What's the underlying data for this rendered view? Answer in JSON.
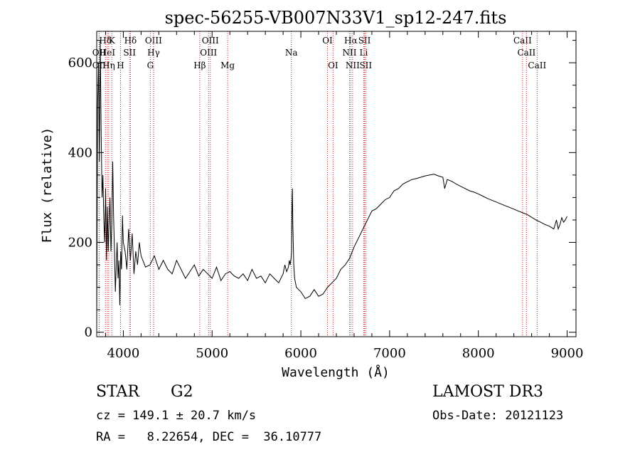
{
  "chart_data": {
    "type": "line",
    "title": "spec-56255-VB007N33V1_sp12-247.fits",
    "xlabel": "Wavelength (Å)",
    "ylabel": "Flux (relative)",
    "xlim": [
      3700,
      9100
    ],
    "ylim": [
      -10,
      670
    ],
    "xticks": [
      4000,
      5000,
      6000,
      7000,
      8000,
      9000
    ],
    "yticks": [
      0,
      200,
      400,
      600
    ],
    "grid": false,
    "series": [
      {
        "name": "flux",
        "x": [
          3700,
          3710,
          3720,
          3730,
          3740,
          3750,
          3760,
          3770,
          3780,
          3790,
          3800,
          3810,
          3820,
          3830,
          3840,
          3850,
          3860,
          3870,
          3880,
          3890,
          3900,
          3910,
          3920,
          3930,
          3940,
          3950,
          3960,
          3970,
          3980,
          3990,
          4000,
          4020,
          4040,
          4060,
          4080,
          4100,
          4120,
          4140,
          4160,
          4180,
          4200,
          4250,
          4300,
          4350,
          4400,
          4450,
          4500,
          4550,
          4600,
          4650,
          4700,
          4750,
          4800,
          4850,
          4900,
          4950,
          5000,
          5050,
          5100,
          5150,
          5200,
          5250,
          5300,
          5350,
          5400,
          5450,
          5500,
          5550,
          5600,
          5650,
          5700,
          5750,
          5800,
          5820,
          5840,
          5860,
          5870,
          5880,
          5890,
          5895,
          5900,
          5905,
          5910,
          5920,
          5930,
          5950,
          6000,
          6050,
          6100,
          6150,
          6200,
          6250,
          6300,
          6350,
          6400,
          6450,
          6500,
          6550,
          6600,
          6650,
          6700,
          6750,
          6800,
          6850,
          6900,
          6950,
          7000,
          7050,
          7100,
          7150,
          7200,
          7250,
          7300,
          7350,
          7400,
          7450,
          7500,
          7550,
          7600,
          7620,
          7650,
          7700,
          7750,
          7800,
          7850,
          7900,
          7950,
          8000,
          8050,
          8100,
          8150,
          8200,
          8250,
          8300,
          8350,
          8400,
          8450,
          8500,
          8550,
          8600,
          8650,
          8700,
          8750,
          8800,
          8850,
          8880,
          8900,
          8920,
          8940,
          8960,
          8980,
          9000
        ],
        "values": [
          20,
          500,
          600,
          380,
          650,
          450,
          300,
          350,
          250,
          200,
          320,
          160,
          280,
          180,
          250,
          300,
          180,
          240,
          380,
          260,
          180,
          90,
          150,
          200,
          120,
          160,
          60,
          180,
          140,
          260,
          200,
          180,
          140,
          230,
          160,
          220,
          130,
          180,
          150,
          200,
          170,
          145,
          150,
          170,
          140,
          160,
          140,
          130,
          160,
          140,
          120,
          135,
          150,
          125,
          140,
          130,
          120,
          145,
          115,
          130,
          135,
          125,
          120,
          130,
          115,
          140,
          120,
          125,
          110,
          130,
          120,
          110,
          130,
          150,
          135,
          145,
          160,
          150,
          165,
          180,
          280,
          320,
          240,
          150,
          120,
          100,
          90,
          75,
          80,
          95,
          80,
          85,
          100,
          110,
          120,
          140,
          150,
          165,
          190,
          210,
          230,
          250,
          270,
          275,
          285,
          295,
          300,
          315,
          320,
          330,
          335,
          340,
          342,
          345,
          348,
          350,
          352,
          348,
          345,
          320,
          340,
          336,
          330,
          325,
          320,
          315,
          312,
          308,
          303,
          298,
          294,
          290,
          286,
          282,
          278,
          274,
          270,
          266,
          262,
          256,
          250,
          245,
          240,
          236,
          230,
          250,
          230,
          240,
          255,
          245,
          250,
          258
        ]
      }
    ],
    "emission_lines": [
      {
        "label": "Hδ",
        "wave": 3798,
        "row": 0
      },
      {
        "label": "K",
        "wave": 3870,
        "row": 0
      },
      {
        "label": "Hδ",
        "wave": 4080,
        "row": 0
      },
      {
        "label": "OIII",
        "wave": 4340,
        "row": 0
      },
      {
        "label": "OIII",
        "wave": 4980,
        "row": 0
      },
      {
        "label": "OI",
        "wave": 6300,
        "row": 0
      },
      {
        "label": "Hα",
        "wave": 6563,
        "row": 0
      },
      {
        "label": "SII",
        "wave": 6717,
        "row": 0
      },
      {
        "label": "CaII",
        "wave": 8498,
        "row": 0
      },
      {
        "label": "OII",
        "wave": 3727,
        "row": 1
      },
      {
        "label": "HeI",
        "wave": 3820,
        "row": 1
      },
      {
        "label": "SII",
        "wave": 4070,
        "row": 1
      },
      {
        "label": "Hγ",
        "wave": 4341,
        "row": 1
      },
      {
        "label": "OIII",
        "wave": 4960,
        "row": 1
      },
      {
        "label": "Na",
        "wave": 5893,
        "row": 1
      },
      {
        "label": "NII",
        "wave": 6548,
        "row": 1
      },
      {
        "label": "Li",
        "wave": 6708,
        "row": 1
      },
      {
        "label": "CaII",
        "wave": 8542,
        "row": 1
      },
      {
        "label": "OII",
        "wave": 3727,
        "row": 2
      },
      {
        "label": "Hη",
        "wave": 3835,
        "row": 2
      },
      {
        "label": "H",
        "wave": 3968,
        "row": 2
      },
      {
        "label": "G",
        "wave": 4304,
        "row": 2
      },
      {
        "label": "Hβ",
        "wave": 4861,
        "row": 2
      },
      {
        "label": "Mg",
        "wave": 5175,
        "row": 2
      },
      {
        "label": "OI",
        "wave": 6363,
        "row": 2
      },
      {
        "label": "NII",
        "wave": 6583,
        "row": 2
      },
      {
        "label": "SII",
        "wave": 6731,
        "row": 2
      },
      {
        "label": "CaII",
        "wave": 8662,
        "row": 2
      }
    ],
    "line_color": "#cc2222"
  },
  "info": {
    "object_class": "STAR",
    "subclass": "G2",
    "survey": "LAMOST DR3",
    "cz": "cz = 149.1 ± 20.7 km/s",
    "obs_date": "Obs-Date: 20121123",
    "coords": "RA =   8.22654, DEC =  36.10777"
  }
}
